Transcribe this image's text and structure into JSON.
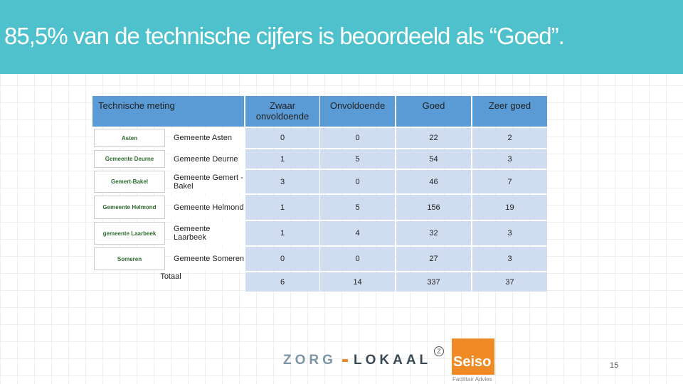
{
  "title": "85,5% van de technische cijfers is beoordeeld als “Goed”.",
  "table": {
    "header": [
      "Technische meting",
      "Zwaar onvoldoende",
      "Onvoldoende",
      "Goed",
      "Zeer goed"
    ],
    "rows": [
      {
        "logo": "Asten",
        "name": "Gemeente Asten",
        "values": [
          0,
          0,
          22,
          2
        ]
      },
      {
        "logo": "Gemeente Deurne",
        "name": "Gemeente Deurne",
        "values": [
          1,
          5,
          54,
          3
        ]
      },
      {
        "logo": "Gemert-Bakel",
        "name": "Gemeente Gemert -Bakel",
        "values": [
          3,
          0,
          46,
          7
        ]
      },
      {
        "logo": "Gemeente Helmond",
        "name": "Gemeente Helmond",
        "values": [
          1,
          5,
          156,
          19
        ]
      },
      {
        "logo": "gemeente Laarbeek",
        "name": "Gemeente Laarbeek",
        "values": [
          1,
          4,
          32,
          3
        ]
      },
      {
        "logo": "Someren",
        "name": "Gemeente Someren",
        "values": [
          0,
          0,
          27,
          3
        ]
      }
    ],
    "total": {
      "name": "Totaal",
      "values": [
        6,
        14,
        337,
        37
      ]
    }
  },
  "footer": {
    "brand1a": "ZORG",
    "brand1b": "LOKAAL",
    "brand1c": "Z",
    "brand2": "Seiso",
    "brand2sub": "Facilitair Advies",
    "page": "15"
  }
}
